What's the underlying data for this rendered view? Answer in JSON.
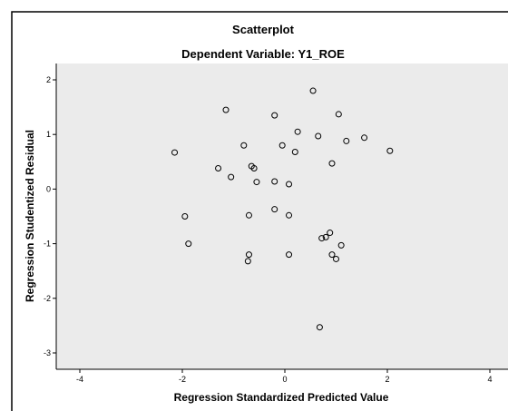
{
  "chart_data": {
    "type": "scatter",
    "title": "Scatterplot",
    "subtitle": "Dependent Variable: Y1_ROE",
    "xlabel": "Regression Standardized Predicted Value",
    "ylabel": "Regression Studentized Residual",
    "xlim": [
      -4.5,
      4.5
    ],
    "ylim": [
      -3.3,
      2.3
    ],
    "xticks": [
      -4,
      -2,
      0,
      2,
      4
    ],
    "yticks": [
      2,
      1,
      0,
      -1,
      -2,
      -3
    ],
    "grid": false,
    "colors": {
      "plot_background": "#ebebeb",
      "marker": "#000000"
    },
    "points": [
      [
        0.55,
        1.8
      ],
      [
        -1.15,
        1.45
      ],
      [
        -0.2,
        1.35
      ],
      [
        1.05,
        1.37
      ],
      [
        0.25,
        1.05
      ],
      [
        0.65,
        0.97
      ],
      [
        1.2,
        0.88
      ],
      [
        1.55,
        0.94
      ],
      [
        -0.8,
        0.8
      ],
      [
        -0.05,
        0.8
      ],
      [
        -2.15,
        0.67
      ],
      [
        0.2,
        0.68
      ],
      [
        2.05,
        0.7
      ],
      [
        -0.65,
        0.42
      ],
      [
        -0.6,
        0.38
      ],
      [
        0.92,
        0.47
      ],
      [
        -1.3,
        0.38
      ],
      [
        -1.05,
        0.22
      ],
      [
        -0.55,
        0.13
      ],
      [
        -0.2,
        0.14
      ],
      [
        0.08,
        0.09
      ],
      [
        -1.95,
        -0.5
      ],
      [
        -0.7,
        -0.48
      ],
      [
        -0.2,
        -0.37
      ],
      [
        0.08,
        -0.48
      ],
      [
        0.88,
        -0.8
      ],
      [
        0.8,
        -0.88
      ],
      [
        0.72,
        -0.9
      ],
      [
        1.1,
        -1.03
      ],
      [
        -1.88,
        -1.0
      ],
      [
        0.92,
        -1.2
      ],
      [
        1.0,
        -1.28
      ],
      [
        -0.7,
        -1.2
      ],
      [
        -0.72,
        -1.32
      ],
      [
        0.08,
        -1.2
      ],
      [
        0.68,
        -2.53
      ]
    ]
  }
}
